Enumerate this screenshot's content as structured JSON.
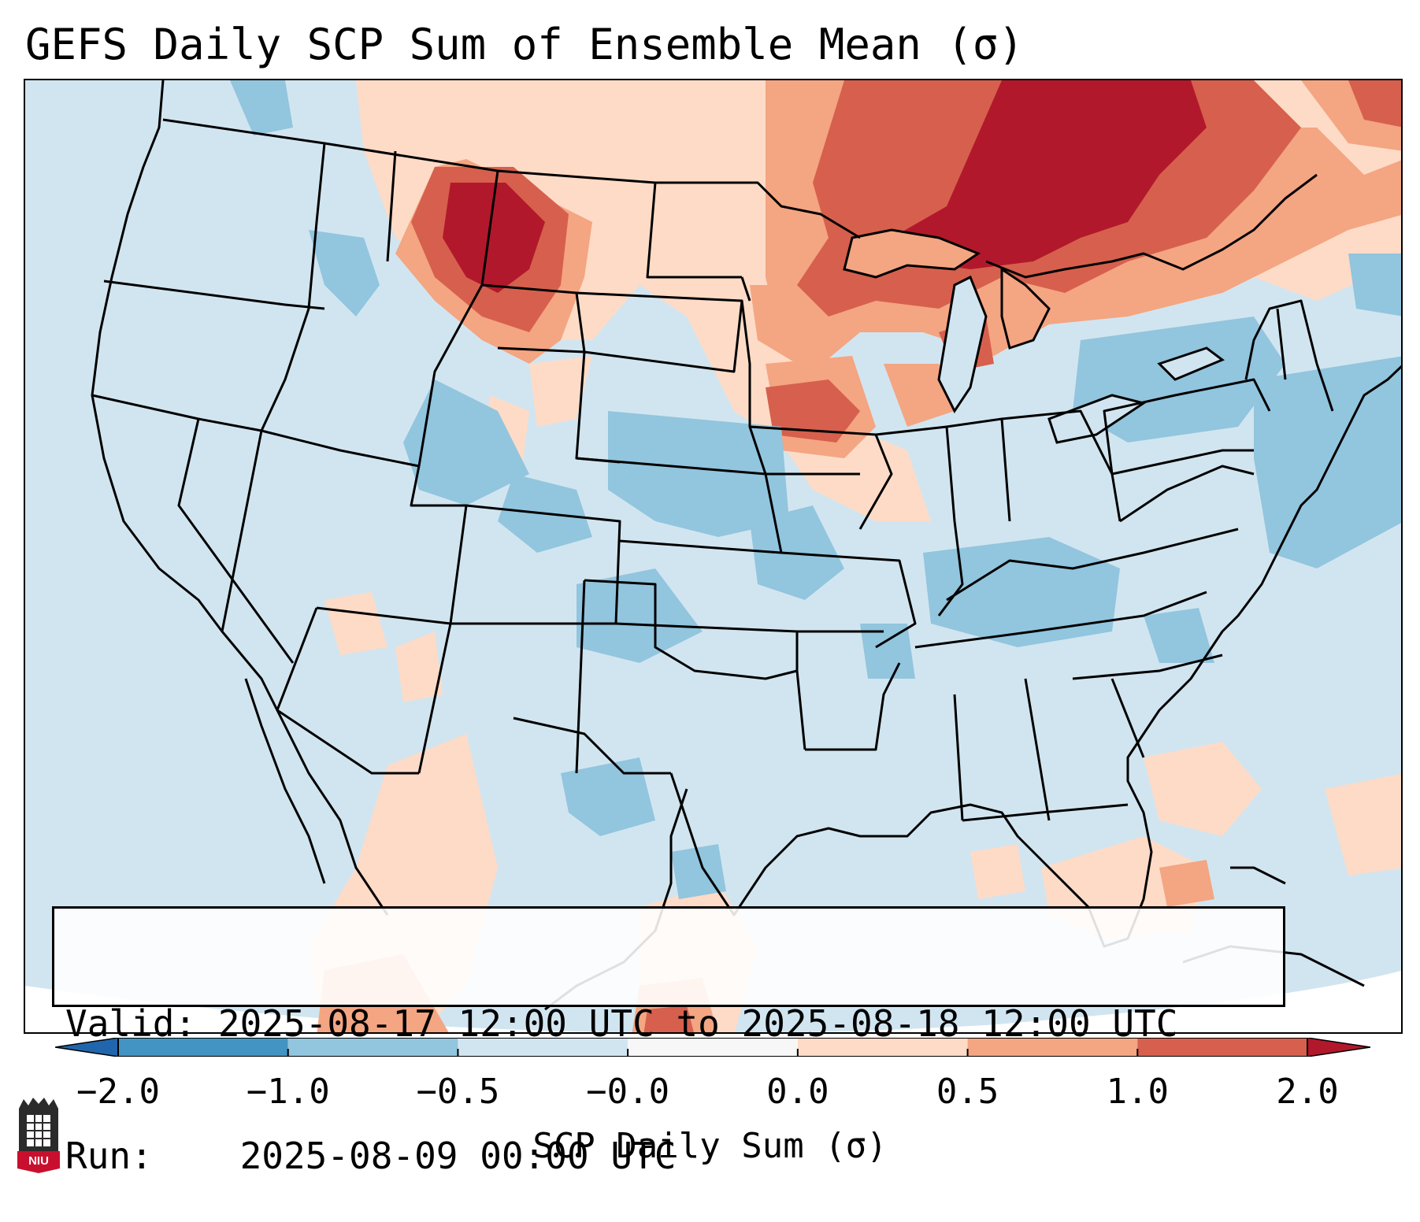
{
  "title": "GEFS Daily SCP Sum of Ensemble Mean (σ)",
  "info_box": {
    "valid_label": "Valid:",
    "valid_value": "2025-08-17 12:00 UTC to 2025-08-18 12:00 UTC",
    "run_label": "Run:",
    "run_value": "2025-08-09 00:00 UTC"
  },
  "colorbar": {
    "label": "SCP Daily Sum (σ)",
    "tick_labels": [
      "−2.0",
      "−1.0",
      "−0.5",
      "−0.0",
      "0.0",
      "0.5",
      "1.0",
      "2.0"
    ],
    "bin_colors": [
      "#4393c3",
      "#92c5de",
      "#d1e5f0",
      "#f7f7f7",
      "#fddbc7",
      "#f4a582",
      "#d6604d"
    ],
    "under_color": "#2166ac",
    "over_color": "#b2182b"
  },
  "colors": {
    "background": "#d1e5f0",
    "border_lines": "#000000"
  },
  "logo": {
    "text": "NIU"
  }
}
